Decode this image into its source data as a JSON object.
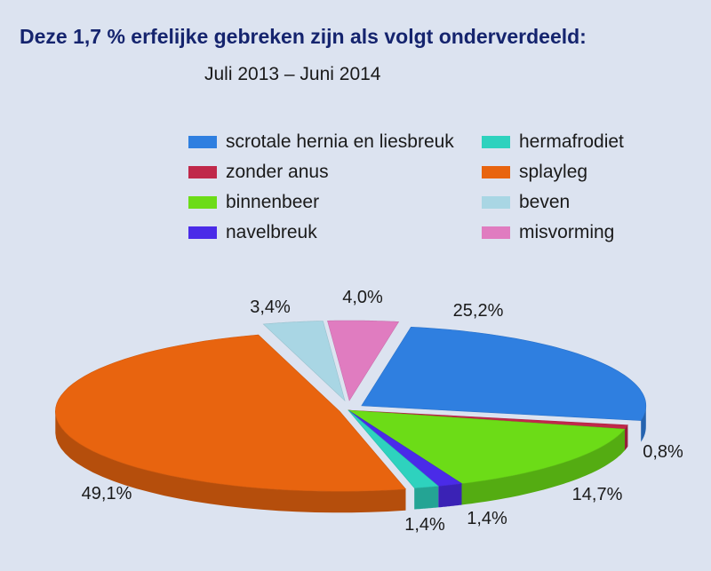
{
  "chart_data": {
    "type": "pie",
    "title": "Deze 1,7 % erfelijke gebreken zijn als volgt onderverdeeld:",
    "subtitle": "Juli 2013 – Juni 2014",
    "legend_position": "top",
    "slices": [
      {
        "label": "scrotale hernia en liesbreuk",
        "value": 25.2,
        "value_label": "25,2%",
        "color": "#2f7fe0"
      },
      {
        "label": "zonder anus",
        "value": 0.8,
        "value_label": "0,8%",
        "color": "#c0284a"
      },
      {
        "label": "binnenbeer",
        "value": 14.7,
        "value_label": "14,7%",
        "color": "#6cdc17"
      },
      {
        "label": "navelbreuk",
        "value": 1.4,
        "value_label": "1,4%",
        "color": "#4a2be8"
      },
      {
        "label": "hermafrodiet",
        "value": 1.4,
        "value_label": "1,4%",
        "color": "#2ed2be"
      },
      {
        "label": "splayleg",
        "value": 49.1,
        "value_label": "49,1%",
        "color": "#e8640f"
      },
      {
        "label": "beven",
        "value": 3.4,
        "value_label": "3,4%",
        "color": "#a9d6e4"
      },
      {
        "label": "misvorming",
        "value": 4.0,
        "value_label": "4,0%",
        "color": "#e07cc0"
      }
    ]
  }
}
